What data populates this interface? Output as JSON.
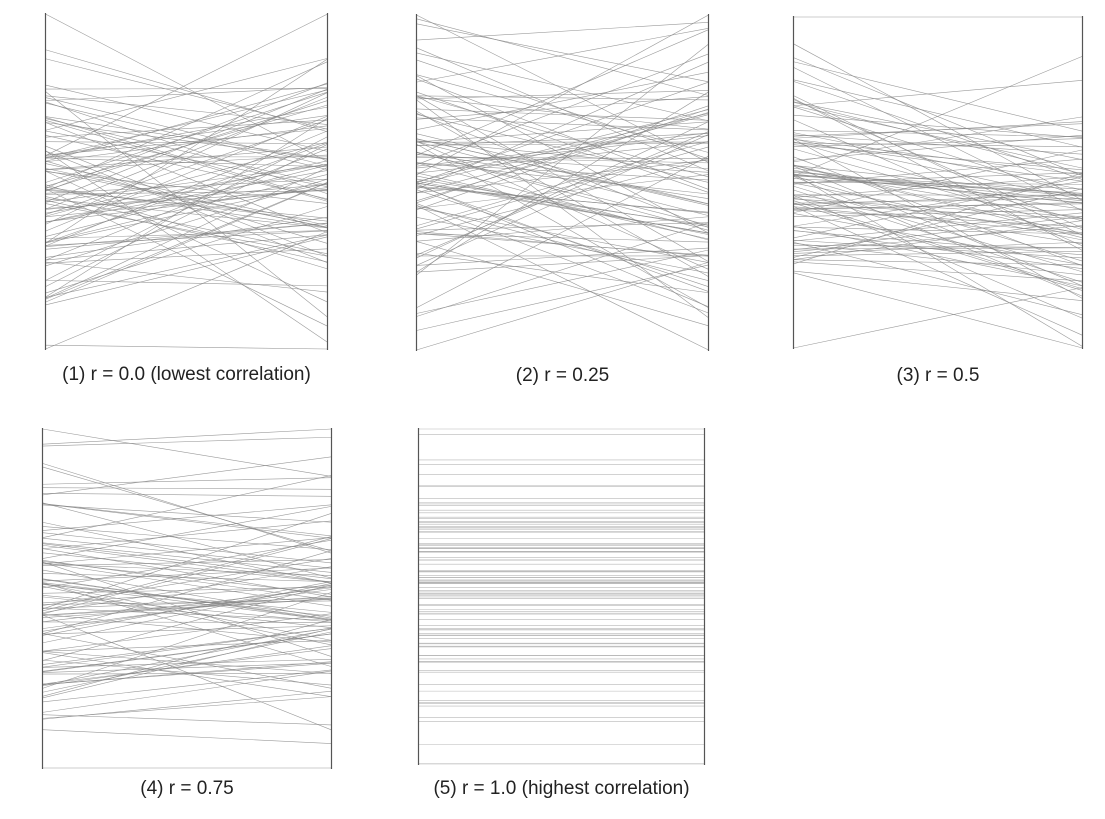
{
  "chart_data": [
    {
      "type": "line",
      "subtype": "parallel-coordinates",
      "caption": "(1) r = 0.0 (lowest correlation)",
      "correlation": 0.0,
      "line_count": 100,
      "line_color": "#888888",
      "axis_color": "#555555"
    },
    {
      "type": "line",
      "subtype": "parallel-coordinates",
      "caption": "(2) r = 0.25",
      "correlation": 0.25,
      "line_count": 100,
      "line_color": "#888888",
      "axis_color": "#555555"
    },
    {
      "type": "line",
      "subtype": "parallel-coordinates",
      "caption": "(3) r = 0.5",
      "correlation": 0.5,
      "line_count": 100,
      "line_color": "#888888",
      "axis_color": "#555555"
    },
    {
      "type": "line",
      "subtype": "parallel-coordinates",
      "caption": "(4) r = 0.75",
      "correlation": 0.75,
      "line_count": 100,
      "line_color": "#888888",
      "axis_color": "#555555"
    },
    {
      "type": "line",
      "subtype": "parallel-coordinates",
      "caption": "(5) r = 1.0 (highest correlation)",
      "correlation": 1.0,
      "line_count": 100,
      "line_color": "#aaaaaa",
      "axis_color": "#555555"
    }
  ]
}
